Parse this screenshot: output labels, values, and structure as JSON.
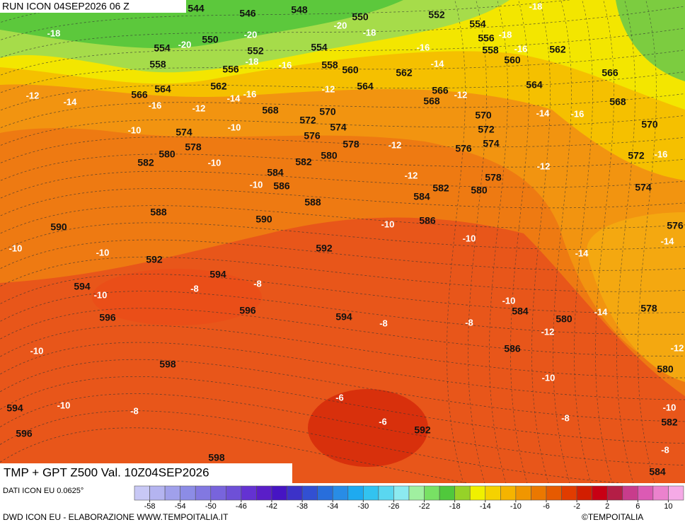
{
  "header": {
    "run": "RUN ICON 04SEP2026 06 Z"
  },
  "map": {
    "title": "TMP + GPT Z500 Val. 10Z04SEP2026",
    "gpt_labels": [
      544,
      546,
      548,
      550,
      552,
      554,
      556,
      558,
      550,
      554,
      552,
      554,
      558,
      556,
      558,
      560,
      562,
      560,
      562,
      566,
      564,
      562,
      564,
      566,
      566,
      568,
      564,
      568,
      570,
      568,
      572,
      570,
      570,
      574,
      572,
      574,
      576,
      578,
      574,
      576,
      580,
      578,
      580,
      572,
      582,
      582,
      584,
      586,
      578,
      582,
      580,
      584,
      574,
      588,
      588,
      590,
      590,
      586,
      576,
      592,
      592,
      594,
      594,
      596,
      596,
      594,
      584,
      580,
      578,
      586,
      598,
      580,
      594,
      596,
      592,
      582,
      598,
      584
    ],
    "tmp_labels": [
      -18,
      -18,
      -20,
      -18,
      -20,
      -18,
      -20,
      -16,
      -16,
      -18,
      -16,
      -14,
      -12,
      -14,
      -16,
      -14,
      -16,
      -12,
      -12,
      -12,
      -14,
      -16,
      -10,
      -10,
      -12,
      -10,
      -12,
      -12,
      -16,
      -10,
      -10,
      -10,
      -14,
      -14,
      -10,
      -10,
      -8,
      -8,
      -10,
      -10,
      -14,
      -8,
      -8,
      -12,
      -12,
      -10,
      -10,
      -8,
      -10,
      -6,
      -6,
      -8,
      -10,
      -8
    ]
  },
  "legend": {
    "source": "DATI ICON EU 0.0625°",
    "colors": [
      "#c8c8f5",
      "#b4b4f0",
      "#a0a0eb",
      "#8c8ce6",
      "#8278e1",
      "#7864dc",
      "#6e50d7",
      "#6432d2",
      "#5a1ec8",
      "#4614c3",
      "#3c32c8",
      "#3250d2",
      "#286edc",
      "#288ce6",
      "#1eaaf0",
      "#32c3f0",
      "#5ad7f0",
      "#8ceaf0",
      "#a0f0a0",
      "#78e164",
      "#50c83c",
      "#96d228",
      "#f0f000",
      "#f5d200",
      "#f5b400",
      "#f09600",
      "#eb7800",
      "#e65a00",
      "#e13c00",
      "#d21e00",
      "#c80014",
      "#b41e46",
      "#c83c8c",
      "#dc5ab4",
      "#eb82cd",
      "#f5aae6"
    ],
    "labels": [
      -58,
      -54,
      -50,
      -46,
      -42,
      -38,
      -34,
      -30,
      -26,
      -22,
      -18,
      -14,
      -10,
      -6,
      -2,
      2,
      6,
      10
    ]
  },
  "footer": {
    "credit": "DWD ICON EU - ELABORAZIONE WWW.TEMPOITALIA.IT",
    "brand": "©TEMPOITALIA"
  }
}
